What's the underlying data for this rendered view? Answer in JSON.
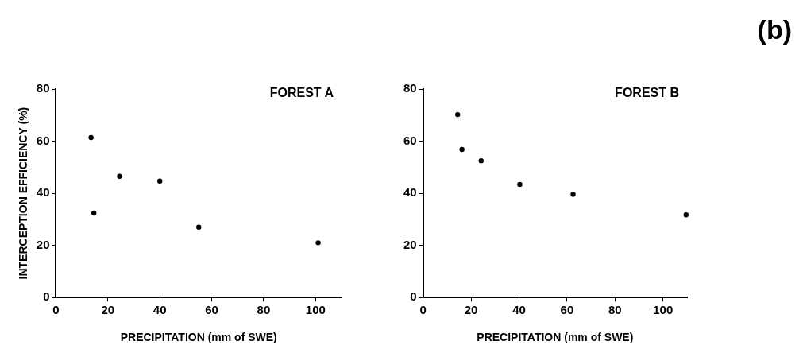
{
  "chart_data": [
    {
      "type": "scatter",
      "title": "FOREST A",
      "xlabel": "PRECIPITATION (mm of SWE)",
      "ylabel": "INTERCEPTION EFFICIENCY (%)",
      "x": [
        13.5,
        14.6,
        24.5,
        40,
        55,
        101
      ],
      "series": [
        {
          "color": "#000000",
          "values": [
            61.4,
            32.4,
            46.5,
            44.7,
            27,
            21
          ]
        }
      ],
      "xlim": [
        0,
        110
      ],
      "xticks": [
        0,
        20,
        40,
        60,
        80,
        100
      ],
      "ylim": [
        0,
        80
      ],
      "yticks": [
        0,
        20,
        40,
        60,
        80
      ],
      "grid": false,
      "legend": false,
      "marker": "circle"
    },
    {
      "type": "scatter",
      "title": "FOREST B",
      "xlabel": "PRECIPITATION (mm of SWE)",
      "annotations": [
        "(b)"
      ],
      "x": [
        14.4,
        16.2,
        24.2,
        40.3,
        62.5,
        109.6
      ],
      "series": [
        {
          "color": "#000000",
          "values": [
            70.2,
            56.8,
            52.5,
            43.4,
            39.6,
            31.7
          ]
        }
      ],
      "xlim": [
        0,
        110
      ],
      "xticks": [
        0,
        20,
        40,
        60,
        80,
        100
      ],
      "ylim": [
        0,
        80
      ],
      "yticks": [
        0,
        20,
        40,
        60,
        80
      ],
      "grid": false,
      "legend": false,
      "marker": "circle"
    }
  ]
}
